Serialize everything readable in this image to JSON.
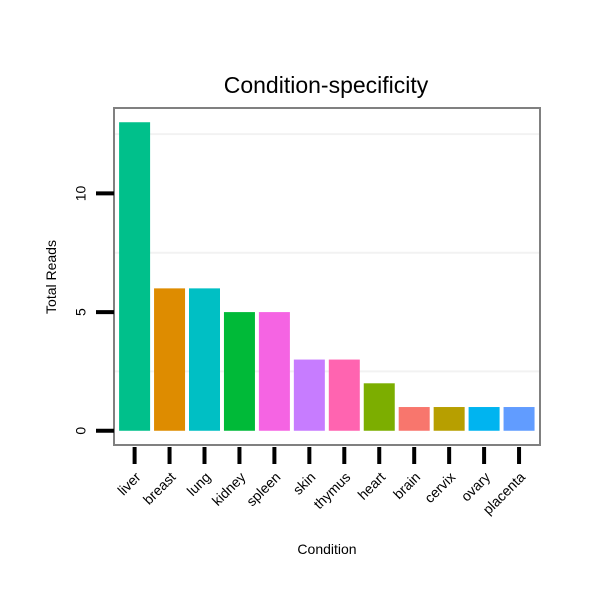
{
  "chart_data": {
    "type": "bar",
    "title": "Condition-specificity",
    "xlabel": "Condition",
    "ylabel": "Total Reads",
    "categories": [
      "liver",
      "breast",
      "lung",
      "kidney",
      "spleen",
      "skin",
      "thymus",
      "heart",
      "brain",
      "cervix",
      "ovary",
      "placenta"
    ],
    "values": [
      13,
      6,
      6,
      5,
      5,
      3,
      3,
      2,
      1,
      1,
      1,
      1
    ],
    "colors": [
      "#00C08B",
      "#DE8C00",
      "#00BFC4",
      "#00BA38",
      "#F564E3",
      "#C77CFF",
      "#FF64B0",
      "#7CAE00",
      "#F8766D",
      "#B79F00",
      "#00B4F0",
      "#619CFF"
    ],
    "yticks": [
      0,
      5,
      10
    ],
    "ylim": [
      -0.6,
      13.6
    ],
    "grid": true,
    "legend": "none"
  }
}
